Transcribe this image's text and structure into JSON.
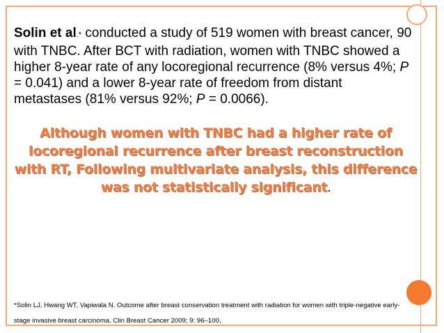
{
  "colors": {
    "accent": "#f37a2f",
    "border": "#f4a87a",
    "highlight": "#f07b3a"
  },
  "body": {
    "author": "Solin et al",
    "marker": ".*",
    "part1": " conducted a study of 519 women with breast cancer, 90 with TNBC. After BCT with radiation, women with TNBC showed a higher 8-year rate of any locoregional recurrence (8% versus 4%; ",
    "p1": "P",
    "part2": " = 0.041) and a lower 8-year rate of freedom from distant metastases (81% versus 92%; ",
    "p2": "P",
    "part3": " = 0.0066)."
  },
  "highlight": {
    "text": "Although women with TNBC had a higher rate of locoregional recurrence after breast reconstruction with RT, Following multivariate analysis, this difference was not statistically significant",
    "period": "."
  },
  "reference": {
    "text": "*Solin LJ, Hwang WT, Vapiwala N. Outcome after breast conservation treatment with radiation for women with triple-negative early-stage invasive breast carcinoma. Clin Breast Cancer 2009; 9: 96–100",
    "period": "."
  }
}
